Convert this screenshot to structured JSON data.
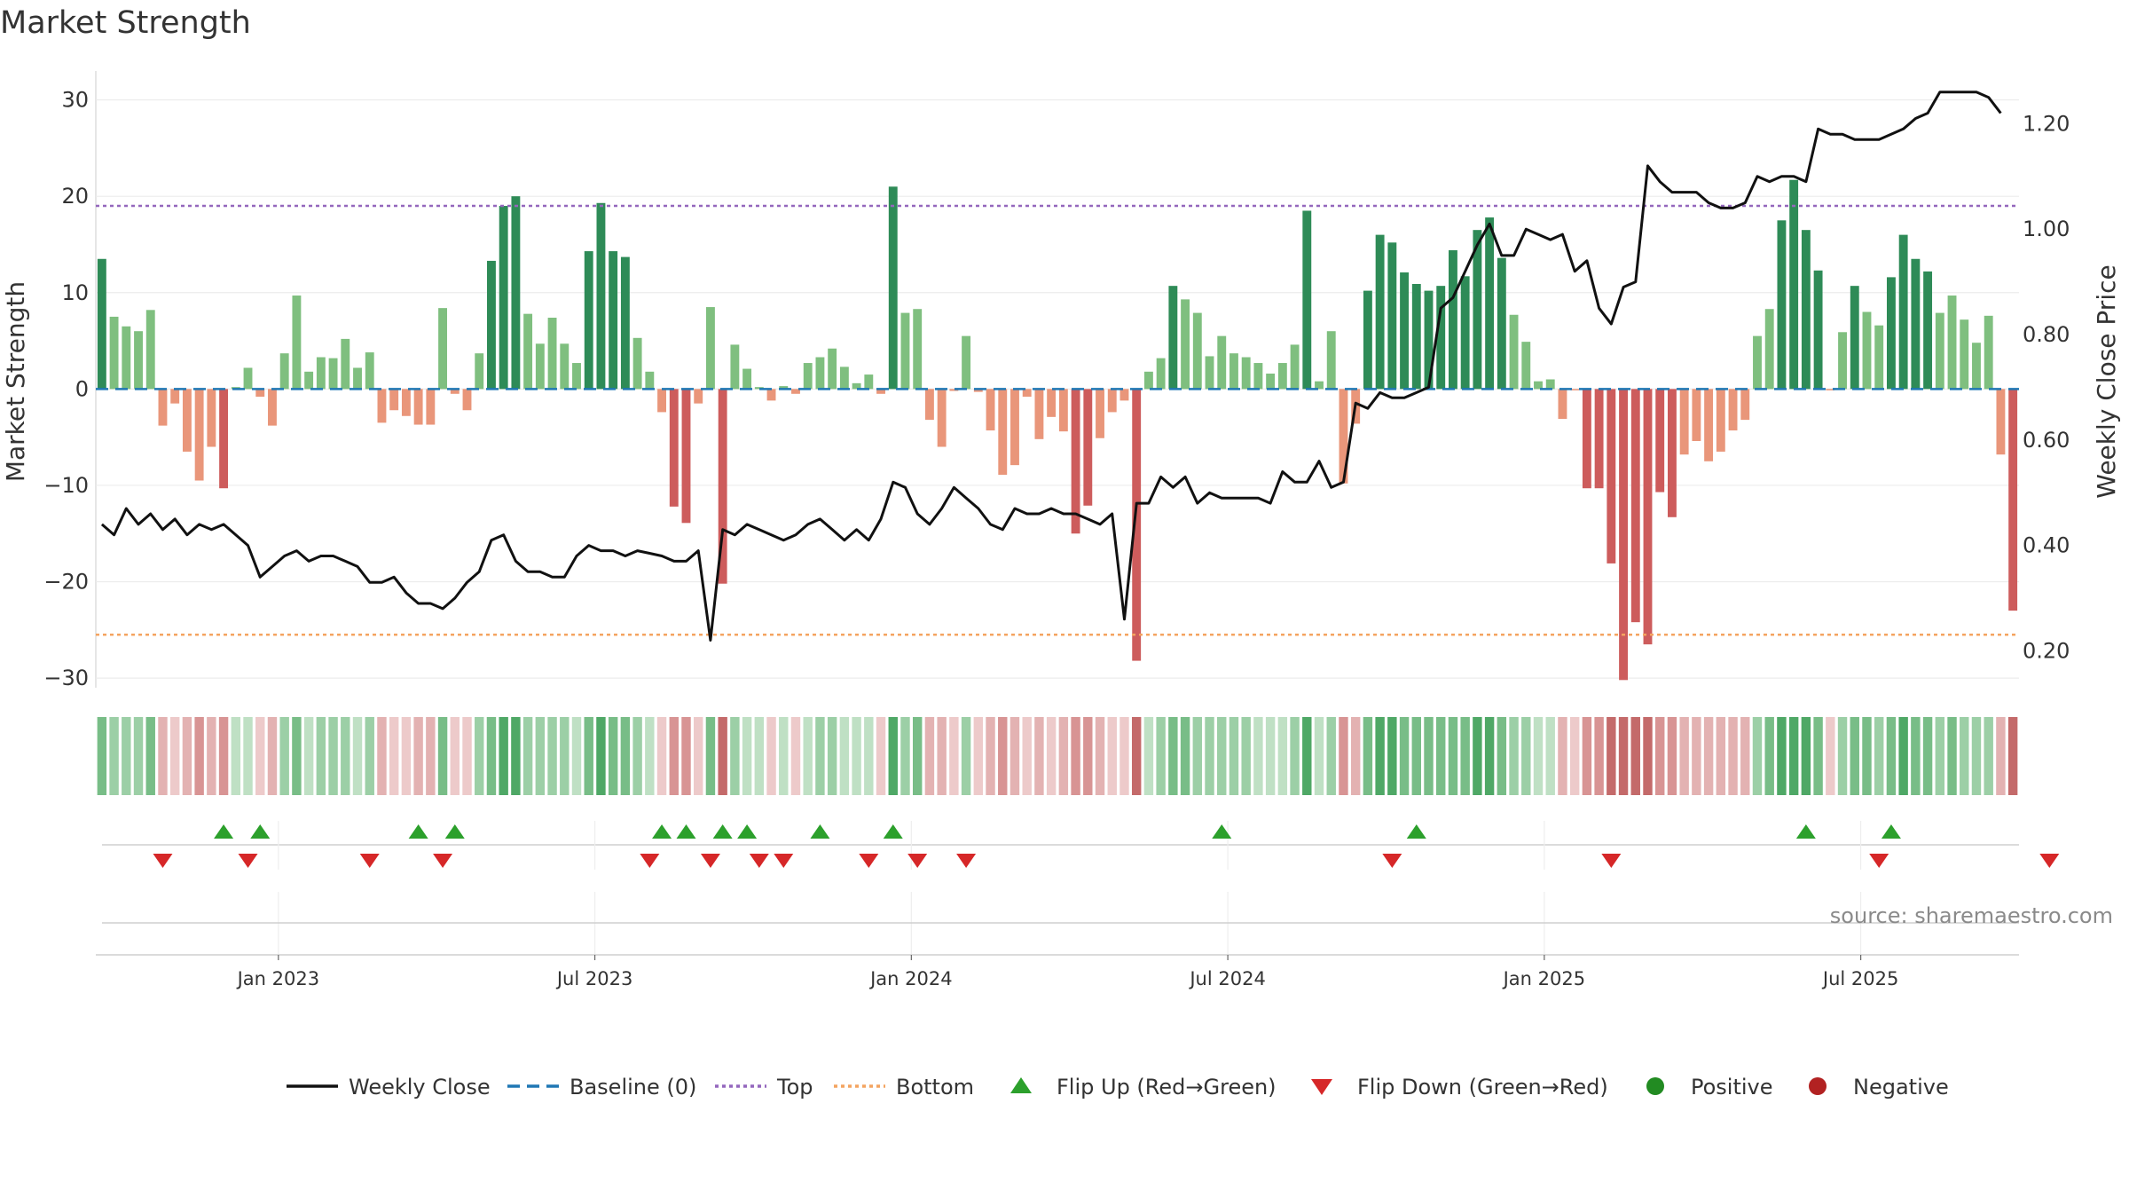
{
  "title": "Market Strength",
  "source": "source: sharemaestro.com",
  "colors": {
    "strong_green": "#2e8b57",
    "light_green": "#7fbf7f",
    "strong_red": "#cd5c5c",
    "light_red": "#e9967a",
    "top_line": "#9467bd",
    "bottom_line": "#f4a460",
    "baseline": "#1f77b4",
    "close_line": "#111111",
    "flip_up": "#2ca02c",
    "flip_down": "#d62728",
    "positive": "#228b22",
    "negative": "#b22222"
  },
  "chart_data": {
    "type": "bar",
    "title": "Market Strength",
    "ylabel": "Market Strength",
    "y2label": "Weekly Close Price",
    "ylim": [
      -31,
      33
    ],
    "y2lim": [
      0.13,
      1.3
    ],
    "yticks": [
      "30",
      "20",
      "10",
      "0",
      "−10",
      "−20",
      "−30"
    ],
    "ytick_values": [
      30,
      20,
      10,
      0,
      -10,
      -20,
      -30
    ],
    "y2ticks": [
      "1.20",
      "1.00",
      "0.80",
      "0.60",
      "0.40",
      "0.20"
    ],
    "y2tick_values": [
      1.2,
      1.0,
      0.8,
      0.6,
      0.4,
      0.2
    ],
    "xticks": [
      "Jan 2023",
      "Jul 2023",
      "Jan 2024",
      "Jul 2024",
      "Jan 2025",
      "Jul 2025"
    ],
    "xtick_index": [
      15,
      41,
      67,
      93,
      119,
      145
    ],
    "top_threshold": 19,
    "bottom_threshold": -25.5,
    "grid": true,
    "legend_position": "bottom",
    "legend": [
      "Weekly Close",
      "Baseline (0)",
      "Top",
      "Bottom",
      "Flip Up (Red→Green)",
      "Flip Down (Green→Red)",
      "Positive",
      "Negative"
    ],
    "strength": [
      13.5,
      7.5,
      6.5,
      6,
      8.2,
      -3.8,
      -1.5,
      -6.5,
      -9.5,
      -6,
      -10.3,
      0.2,
      2.2,
      -0.8,
      -3.8,
      3.7,
      9.7,
      1.8,
      3.3,
      3.2,
      5.2,
      2.2,
      3.8,
      -3.5,
      -2.2,
      -2.8,
      -3.7,
      -3.7,
      8.4,
      -0.5,
      -2.2,
      3.7,
      13.3,
      19,
      20,
      7.8,
      4.7,
      7.4,
      4.7,
      2.7,
      14.3,
      19.3,
      14.3,
      13.7,
      5.3,
      1.8,
      -2.4,
      -12.2,
      -13.9,
      -1.5,
      8.5,
      -20.2,
      4.6,
      2.1,
      0.2,
      -1.2,
      0.3,
      -0.5,
      2.7,
      3.3,
      4.2,
      2.3,
      0.6,
      1.5,
      -0.5,
      21,
      7.9,
      8.3,
      -3.2,
      -6,
      -0.2,
      5.5,
      -0.3,
      -4.3,
      -8.9,
      -7.9,
      -0.8,
      -5.2,
      -2.9,
      -4.4,
      -15,
      -12.1,
      -5.1,
      -2.4,
      -1.2,
      -28.2,
      1.8,
      3.2,
      10.7,
      9.3,
      7.9,
      3.4,
      5.5,
      3.7,
      3.3,
      2.7,
      1.6,
      2.7,
      4.6,
      18.5,
      0.8,
      6,
      -9.8,
      -3.6,
      10.2,
      16,
      15.2,
      12.1,
      10.9,
      10.2,
      10.7,
      14.4,
      11.7,
      16.5,
      17.8,
      13.6,
      7.7,
      4.9,
      0.8,
      1,
      -3.1,
      -0.1,
      -10.3,
      -10.3,
      -18.1,
      -30.2,
      -24.2,
      -26.5,
      -10.7,
      -13.3,
      -6.8,
      -5.4,
      -7.5,
      -6.5,
      -4.3,
      -3.2,
      5.5,
      8.3,
      17.5,
      21.7,
      16.5,
      12.3,
      -0.1,
      5.9,
      10.7,
      8,
      6.6,
      11.6,
      16,
      13.5,
      12.2,
      7.9,
      9.7,
      7.2,
      4.8,
      7.6,
      -6.8,
      -23
    ]
  },
  "close_prices": [
    0.44,
    0.42,
    0.47,
    0.44,
    0.46,
    0.43,
    0.45,
    0.42,
    0.44,
    0.43,
    0.44,
    0.42,
    0.4,
    0.34,
    0.36,
    0.38,
    0.39,
    0.37,
    0.38,
    0.38,
    0.37,
    0.36,
    0.33,
    0.33,
    0.34,
    0.31,
    0.29,
    0.29,
    0.28,
    0.3,
    0.33,
    0.35,
    0.41,
    0.42,
    0.37,
    0.35,
    0.35,
    0.34,
    0.34,
    0.38,
    0.4,
    0.39,
    0.39,
    0.38,
    0.39,
    0.385,
    0.38,
    0.37,
    0.37,
    0.39,
    0.22,
    0.43,
    0.42,
    0.44,
    0.43,
    0.42,
    0.41,
    0.42,
    0.44,
    0.45,
    0.43,
    0.41,
    0.43,
    0.41,
    0.45,
    0.52,
    0.51,
    0.46,
    0.44,
    0.47,
    0.51,
    0.49,
    0.47,
    0.44,
    0.43,
    0.47,
    0.46,
    0.46,
    0.47,
    0.46,
    0.46,
    0.45,
    0.44,
    0.46,
    0.26,
    0.48,
    0.48,
    0.53,
    0.51,
    0.53,
    0.48,
    0.5,
    0.49,
    0.49,
    0.49,
    0.49,
    0.48,
    0.54,
    0.52,
    0.52,
    0.56,
    0.51,
    0.52,
    0.67,
    0.66,
    0.69,
    0.68,
    0.68,
    0.69,
    0.7,
    0.85,
    0.87,
    0.92,
    0.97,
    1.01,
    0.95,
    0.95,
    1.0,
    0.99,
    0.98,
    0.99,
    0.92,
    0.94,
    0.85,
    0.82,
    0.89,
    0.9,
    1.12,
    1.09,
    1.07,
    1.07,
    1.07,
    1.05,
    1.04,
    1.04,
    1.05,
    1.1,
    1.09,
    1.1,
    1.1,
    1.09,
    1.19,
    1.18,
    1.18,
    1.17,
    1.17,
    1.17,
    1.18,
    1.19,
    1.21,
    1.22,
    1.26,
    1.26,
    1.26,
    1.26,
    1.25,
    1.22
  ],
  "flip_up_index": [
    10,
    13,
    26,
    29,
    46,
    48,
    51,
    53,
    59,
    65,
    92,
    108,
    140,
    147
  ],
  "flip_down_index": [
    5,
    12,
    22,
    28,
    45,
    50,
    54,
    56,
    63,
    67,
    71,
    106,
    124,
    146,
    160
  ]
}
